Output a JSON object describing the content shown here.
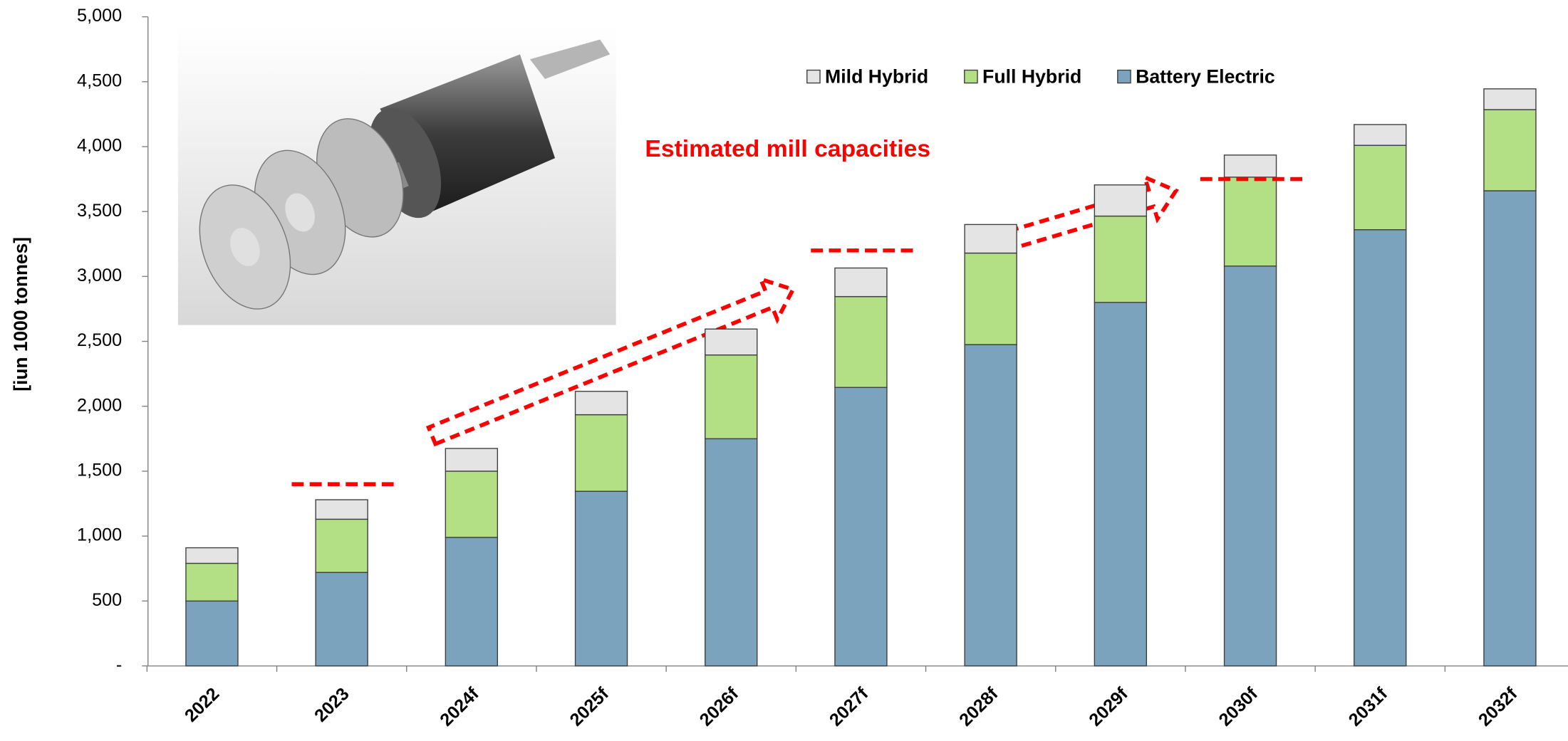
{
  "chart_data": {
    "type": "bar",
    "stacked": true,
    "y_label": "[iun 1000 tonnes]",
    "categories": [
      "2022",
      "2023",
      "2024f",
      "2025f",
      "2026f",
      "2027f",
      "2028f",
      "2029f",
      "2030f",
      "2031f",
      "2032f"
    ],
    "series": [
      {
        "name": "Battery Electric",
        "color": "#7ba3bd",
        "values": [
          500,
          720,
          990,
          1345,
          1750,
          2145,
          2475,
          2800,
          3080,
          3360,
          3660
        ]
      },
      {
        "name": "Full Hybrid",
        "color": "#b3df85",
        "values": [
          290,
          410,
          510,
          590,
          645,
          700,
          705,
          665,
          685,
          650,
          625
        ]
      },
      {
        "name": "Mild Hybrid",
        "color": "#e4e4e4",
        "values": [
          120,
          150,
          175,
          180,
          200,
          220,
          220,
          240,
          170,
          160,
          160
        ]
      }
    ],
    "capacity": {
      "label": "Estimated mill capacities",
      "color": "#ff0000",
      "values": [
        null,
        1400,
        null,
        null,
        null,
        3200,
        null,
        null,
        3750,
        null,
        null
      ]
    },
    "ylim": [
      0,
      5000
    ],
    "yticks": [
      {
        "value": 0,
        "label": "-"
      },
      500,
      {
        "value": 1000,
        "label": "1,000"
      },
      {
        "value": 1500,
        "label": "1,500"
      },
      {
        "value": 2000,
        "label": "2,000"
      },
      {
        "value": 2500,
        "label": "2,500"
      },
      {
        "value": 3000,
        "label": "3,000"
      },
      {
        "value": 3500,
        "label": "3,500"
      },
      {
        "value": 4000,
        "label": "4,000"
      },
      {
        "value": 4500,
        "label": "4,500"
      },
      {
        "value": 5000,
        "label": "5,000"
      }
    ],
    "legend_order": [
      2,
      1,
      0
    ],
    "legend_position": "top"
  }
}
